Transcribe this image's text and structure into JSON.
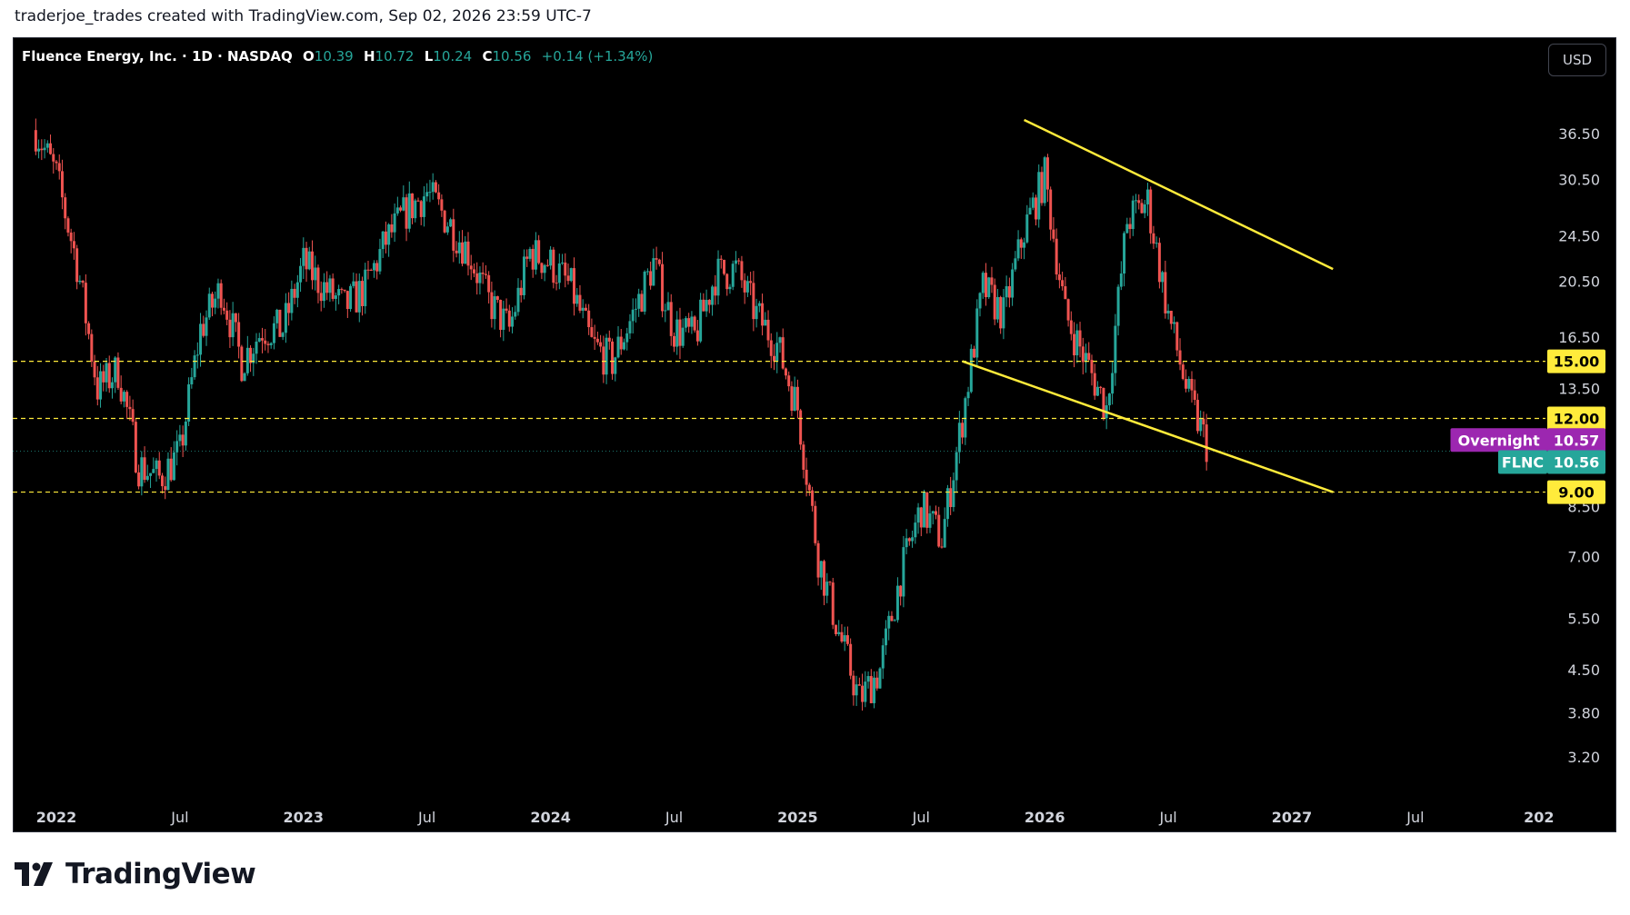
{
  "header": {
    "attribution": "traderjoe_trades created with TradingView.com, Sep 02, 2026 23:59 UTC-7"
  },
  "legend": {
    "symbol_desc": "Fluence Energy, Inc. · 1D · NASDAQ",
    "o_label": "O",
    "o_value": "10.39",
    "h_label": "H",
    "h_value": "10.72",
    "l_label": "L",
    "l_value": "10.24",
    "c_label": "C",
    "c_value": "10.56",
    "change": "+0.14 (+1.34%)"
  },
  "currency_button": "USD",
  "footer": {
    "brand": "TradingView"
  },
  "colors": {
    "up": "#26a69a",
    "down": "#ef5350",
    "trendline": "#ffeb3b",
    "background": "#000000",
    "overnight": "#9c27b0"
  },
  "chart_data": {
    "type": "candlestick",
    "symbol": "FLNC",
    "scale": "log",
    "y_tick_labels": [
      "36.50",
      "30.50",
      "24.50",
      "20.50",
      "16.50",
      "13.50",
      "8.50",
      "7.00",
      "5.50",
      "4.50",
      "3.80",
      "3.20"
    ],
    "x_tick_labels": [
      "2022",
      "Jul",
      "2023",
      "Jul",
      "2024",
      "Jul",
      "2025",
      "Jul",
      "2026",
      "Jul",
      "2027",
      "Jul",
      "202"
    ],
    "price_labels": [
      {
        "label": "",
        "value": "15.00"
      },
      {
        "label": "",
        "value": "12.00"
      },
      {
        "label": "Overnight",
        "value": "10.57"
      },
      {
        "label": "FLNC",
        "value": "10.56"
      },
      {
        "label": "",
        "value": "9.00"
      }
    ],
    "horizontal_levels": [
      15.0,
      12.0,
      9.0
    ],
    "trendlines": [
      {
        "from": [
          "2025-12",
          38.5
        ],
        "to": [
          "2027-03",
          21.5
        ]
      },
      {
        "from": [
          "2025-09",
          15.0
        ],
        "to": [
          "2027-03",
          9.0
        ]
      }
    ],
    "approx_close_path": [
      {
        "date": "2021-12",
        "close": 37
      },
      {
        "date": "2022-01",
        "close": 31
      },
      {
        "date": "2022-02",
        "close": 22
      },
      {
        "date": "2022-03",
        "close": 13.5
      },
      {
        "date": "2022-04",
        "close": 14.5
      },
      {
        "date": "2022-05",
        "close": 10
      },
      {
        "date": "2022-06",
        "close": 9.5
      },
      {
        "date": "2022-07",
        "close": 10.5
      },
      {
        "date": "2022-08",
        "close": 17
      },
      {
        "date": "2022-09",
        "close": 20
      },
      {
        "date": "2022-10",
        "close": 15
      },
      {
        "date": "2022-11",
        "close": 17
      },
      {
        "date": "2022-12",
        "close": 17
      },
      {
        "date": "2023-01",
        "close": 22
      },
      {
        "date": "2023-02",
        "close": 20
      },
      {
        "date": "2023-03",
        "close": 18.5
      },
      {
        "date": "2023-04",
        "close": 20
      },
      {
        "date": "2023-05",
        "close": 24
      },
      {
        "date": "2023-06",
        "close": 27
      },
      {
        "date": "2023-07",
        "close": 29
      },
      {
        "date": "2023-08",
        "close": 26
      },
      {
        "date": "2023-09",
        "close": 23
      },
      {
        "date": "2023-10",
        "close": 19
      },
      {
        "date": "2023-11",
        "close": 17
      },
      {
        "date": "2023-12",
        "close": 23
      },
      {
        "date": "2024-01",
        "close": 22
      },
      {
        "date": "2024-02",
        "close": 20
      },
      {
        "date": "2024-03",
        "close": 16
      },
      {
        "date": "2024-04",
        "close": 15
      },
      {
        "date": "2024-05",
        "close": 18
      },
      {
        "date": "2024-06",
        "close": 22
      },
      {
        "date": "2024-07",
        "close": 17
      },
      {
        "date": "2024-08",
        "close": 16.5
      },
      {
        "date": "2024-09",
        "close": 21
      },
      {
        "date": "2024-10",
        "close": 21.5
      },
      {
        "date": "2024-11",
        "close": 18
      },
      {
        "date": "2024-12",
        "close": 16
      },
      {
        "date": "2025-01",
        "close": 12.5
      },
      {
        "date": "2025-02",
        "close": 7
      },
      {
        "date": "2025-03",
        "close": 5.2
      },
      {
        "date": "2025-04",
        "close": 4
      },
      {
        "date": "2025-05",
        "close": 4.5
      },
      {
        "date": "2025-06",
        "close": 6.5
      },
      {
        "date": "2025-07",
        "close": 8.5
      },
      {
        "date": "2025-08",
        "close": 7.5
      },
      {
        "date": "2025-09",
        "close": 12
      },
      {
        "date": "2025-10",
        "close": 20
      },
      {
        "date": "2025-11",
        "close": 18
      },
      {
        "date": "2025-12",
        "close": 25
      },
      {
        "date": "2026-01",
        "close": 31
      },
      {
        "date": "2026-02",
        "close": 18
      },
      {
        "date": "2026-03",
        "close": 15
      },
      {
        "date": "2026-04",
        "close": 12.5
      },
      {
        "date": "2026-05",
        "close": 26
      },
      {
        "date": "2026-06",
        "close": 28
      },
      {
        "date": "2026-07",
        "close": 18
      },
      {
        "date": "2026-08",
        "close": 13
      },
      {
        "date": "2026-09",
        "close": 10.56
      }
    ]
  }
}
